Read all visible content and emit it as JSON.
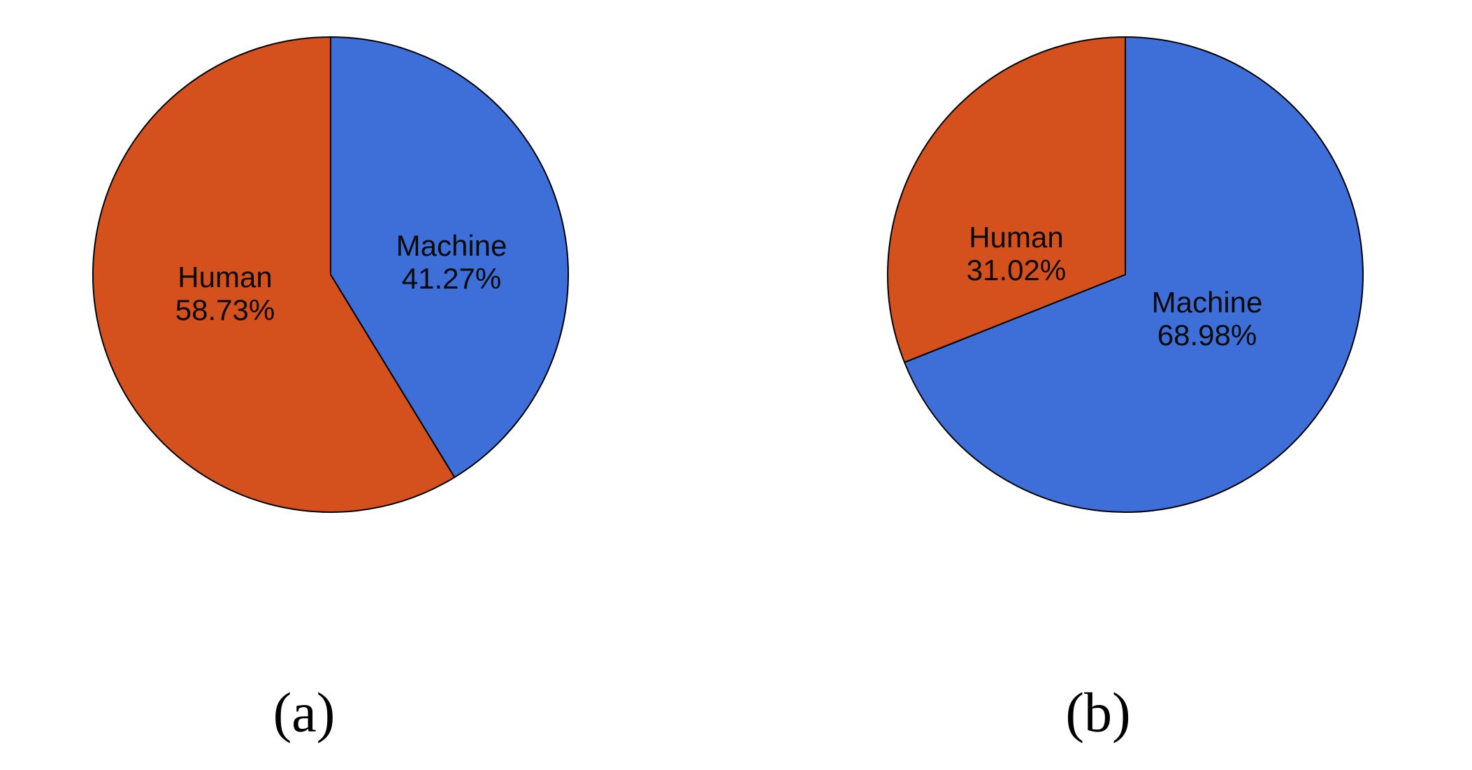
{
  "style": {
    "background": "#ffffff",
    "wedge_stroke": "#000000",
    "label_text_color": "#0a0a0a",
    "machine_color": "#3E6ED7",
    "human_color": "#D4501C"
  },
  "chart_data": [
    {
      "type": "pie",
      "caption": "(a)",
      "title": "",
      "direction": "clockwise",
      "start_angle": "12-o'clock",
      "legend": "none (labels inside slices)",
      "slices": [
        {
          "name": "Machine",
          "value_pct": 41.27,
          "pct_label": "41.27%",
          "color": "#3E6ED7"
        },
        {
          "name": "Human",
          "value_pct": 58.73,
          "pct_label": "58.73%",
          "color": "#D4501C"
        }
      ]
    },
    {
      "type": "pie",
      "caption": "(b)",
      "title": "",
      "direction": "clockwise",
      "start_angle": "12-o'clock",
      "legend": "none (labels inside slices)",
      "slices": [
        {
          "name": "Machine",
          "value_pct": 68.98,
          "pct_label": "68.98%",
          "color": "#3E6ED7"
        },
        {
          "name": "Human",
          "value_pct": 31.02,
          "pct_label": "31.02%",
          "color": "#D4501C"
        }
      ]
    }
  ]
}
